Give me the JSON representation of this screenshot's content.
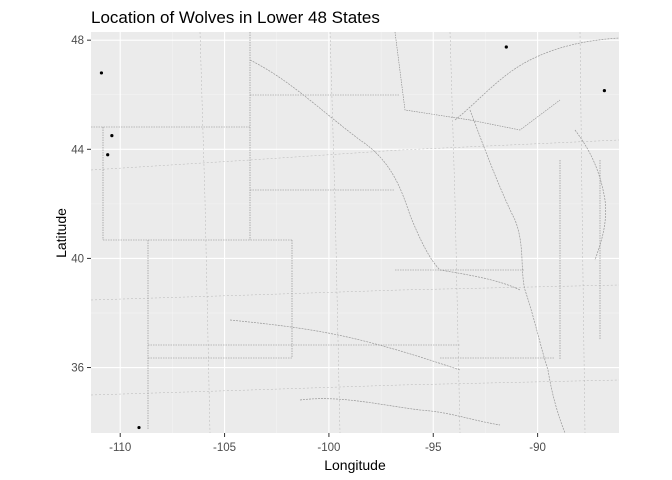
{
  "chart_data": {
    "type": "scatter",
    "title": "Location of Wolves in Lower 48 States",
    "xlabel": "Longitude",
    "ylabel": "Latitude",
    "xlim": [
      -111.4,
      -86.1
    ],
    "ylim": [
      33.6,
      48.3
    ],
    "x_ticks": [
      -110,
      -105,
      -100,
      -95,
      -90
    ],
    "x_tick_labels": [
      "-110",
      "-105",
      "-100",
      "-95",
      "-90"
    ],
    "y_ticks": [
      36,
      40,
      44,
      48
    ],
    "y_tick_labels": [
      "36",
      "40",
      "44",
      "48"
    ],
    "grid": true,
    "legend": "none",
    "background_map": "state boundaries, rivers and roads of the central United States",
    "points": [
      {
        "x": -110.9,
        "y": 46.8
      },
      {
        "x": -110.4,
        "y": 44.5
      },
      {
        "x": -110.6,
        "y": 43.8
      },
      {
        "x": -109.1,
        "y": 33.8
      },
      {
        "x": -91.5,
        "y": 47.75
      },
      {
        "x": -86.8,
        "y": 46.15
      }
    ]
  },
  "colors": {
    "panel_background": "#ebebeb",
    "grid": "#ffffff",
    "point": "#000000"
  }
}
